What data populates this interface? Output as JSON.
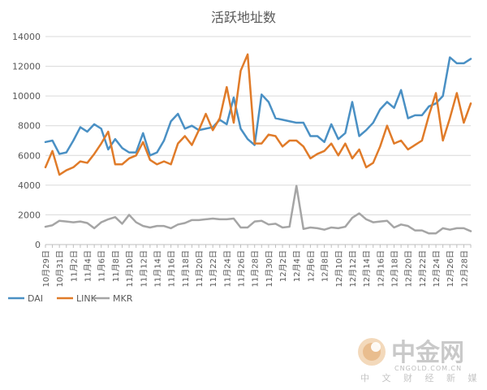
{
  "chart_data": {
    "type": "line",
    "title": "活跃地址数",
    "ylim": [
      0,
      14000
    ],
    "yticks": [
      0,
      2000,
      4000,
      6000,
      8000,
      10000,
      12000,
      14000
    ],
    "grid": "horizontal",
    "legend_position": "bottom-left",
    "categories": [
      "10月29日",
      "10月30日",
      "10月31日",
      "11月1日",
      "11月2日",
      "11月3日",
      "11月4日",
      "11月5日",
      "11月6日",
      "11月7日",
      "11月8日",
      "11月9日",
      "11月10日",
      "11月11日",
      "11月12日",
      "11月13日",
      "11月14日",
      "11月15日",
      "11月16日",
      "11月17日",
      "11月18日",
      "11月19日",
      "11月20日",
      "11月21日",
      "11月22日",
      "11月23日",
      "11月24日",
      "11月25日",
      "11月26日",
      "11月27日",
      "11月28日",
      "11月29日",
      "11月30日",
      "12月1日",
      "12月2日",
      "12月3日",
      "12月4日",
      "12月5日",
      "12月6日",
      "12月7日",
      "12月8日",
      "12月9日",
      "12月10日",
      "12月11日",
      "12月12日",
      "12月13日",
      "12月14日",
      "12月15日",
      "12月16日",
      "12月17日",
      "12月18日",
      "12月19日",
      "12月20日",
      "12月21日",
      "12月22日",
      "12月23日",
      "12月24日",
      "12月25日",
      "12月26日",
      "12月27日",
      "12月28日",
      "12月29日"
    ],
    "tick_labels": [
      "10月29日",
      "10月31日",
      "11月2日",
      "11月4日",
      "11月6日",
      "11月8日",
      "11月10日",
      "11月12日",
      "11月14日",
      "11月16日",
      "11月18日",
      "11月20日",
      "11月22日",
      "11月24日",
      "11月26日",
      "11月28日",
      "11月30日",
      "12月2日",
      "12月4日",
      "12月6日",
      "12月8日",
      "12月10日",
      "12月12日",
      "12月14日",
      "12月16日",
      "12月18日",
      "12月20日",
      "12月22日",
      "12月24日",
      "12月26日",
      "12月28日"
    ],
    "series": [
      {
        "name": "DAI",
        "color": "#4a90c4",
        "values": [
          6900,
          7000,
          6100,
          6200,
          7000,
          7900,
          7600,
          8100,
          7800,
          6400,
          7100,
          6500,
          6200,
          6200,
          7500,
          6000,
          6200,
          7000,
          8300,
          8800,
          7800,
          8000,
          7700,
          7800,
          7900,
          8400,
          8100,
          9900,
          7800,
          7100,
          6700,
          10100,
          9600,
          8500,
          8400,
          8300,
          8200,
          8200,
          7300,
          7300,
          6900,
          8100,
          7100,
          7500,
          9600,
          7300,
          7700,
          8200,
          9100,
          9600,
          9200,
          10400,
          8500,
          8700,
          8700,
          9300,
          9500,
          10000,
          12600,
          12200,
          12200,
          12500
        ]
      },
      {
        "name": "LINK",
        "color": "#e07b29",
        "values": [
          5200,
          6300,
          4700,
          5000,
          5200,
          5600,
          5500,
          6100,
          6800,
          7600,
          5400,
          5400,
          5800,
          6000,
          6900,
          5700,
          5400,
          5600,
          5400,
          6800,
          7300,
          6700,
          7700,
          8800,
          7700,
          8500,
          10600,
          8200,
          11700,
          12800,
          6800,
          6800,
          7400,
          7300,
          6600,
          7000,
          7000,
          6600,
          5800,
          6100,
          6300,
          6800,
          6000,
          6800,
          5800,
          6400,
          5200,
          5500,
          6600,
          8000,
          6800,
          7000,
          6400,
          6700,
          7000,
          8700,
          10200,
          7000,
          8500,
          10200,
          8200,
          9500
        ]
      },
      {
        "name": "MKR",
        "color": "#a5a5a5",
        "values": [
          1200,
          1300,
          1600,
          1550,
          1500,
          1550,
          1450,
          1100,
          1500,
          1700,
          1850,
          1400,
          2000,
          1500,
          1250,
          1150,
          1250,
          1250,
          1100,
          1350,
          1450,
          1650,
          1650,
          1700,
          1750,
          1700,
          1700,
          1750,
          1150,
          1150,
          1550,
          1600,
          1350,
          1400,
          1150,
          1200,
          3950,
          1050,
          1150,
          1100,
          1000,
          1150,
          1100,
          1200,
          1800,
          2100,
          1700,
          1500,
          1550,
          1600,
          1150,
          1350,
          1250,
          950,
          950,
          750,
          750,
          1100,
          1000,
          1100,
          1100,
          900
        ]
      }
    ]
  },
  "watermark": {
    "name_cn": "中金网",
    "site": "CNGOLD.COM.CN",
    "tagline": "中 文 财 经 新 媒 体"
  }
}
